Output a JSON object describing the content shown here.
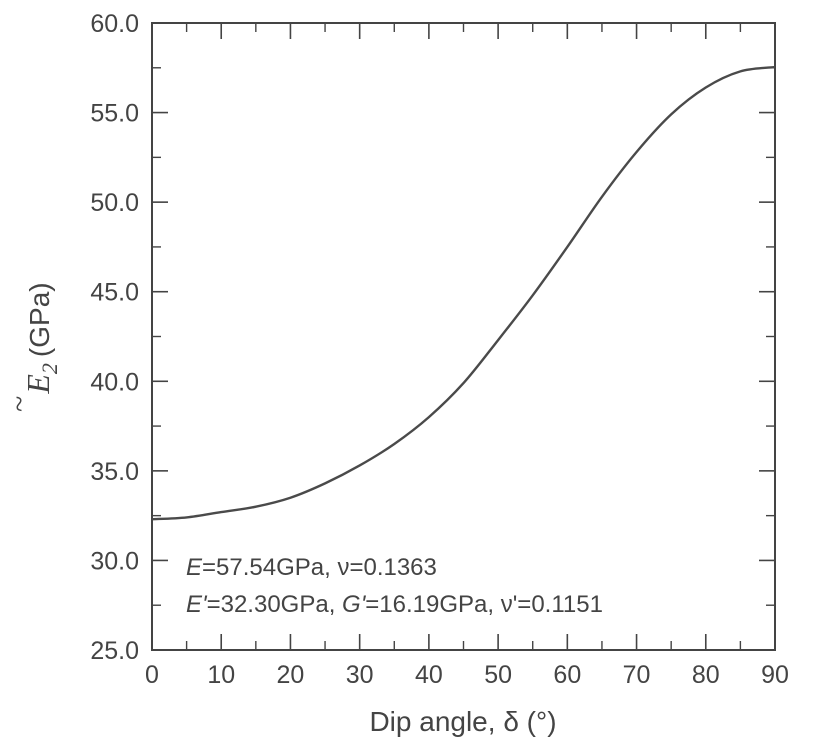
{
  "chart_data": {
    "type": "line",
    "xlabel": "Dip angle, δ (°)",
    "ylabel_symbol": "E",
    "ylabel_subscript": "2",
    "ylabel_tilde": "~",
    "ylabel_unit": "(GPa)",
    "xlim": [
      0,
      90
    ],
    "ylim": [
      25.0,
      60.0
    ],
    "x_ticks": [
      0,
      10,
      20,
      30,
      40,
      50,
      60,
      70,
      80,
      90
    ],
    "x_tick_labels": [
      "0",
      "10",
      "20",
      "30",
      "40",
      "50",
      "60",
      "70",
      "80",
      "90"
    ],
    "y_ticks": [
      25,
      30,
      35,
      40,
      45,
      50,
      55,
      60
    ],
    "y_tick_labels": [
      "25.0",
      "30.0",
      "35.0",
      "40.0",
      "45.0",
      "50.0",
      "55.0",
      "60.0"
    ],
    "grid": false,
    "series": [
      {
        "x": [
          0,
          5,
          10,
          15,
          20,
          25,
          30,
          35,
          40,
          45,
          50,
          55,
          60,
          65,
          70,
          75,
          80,
          85,
          90
        ],
        "y": [
          32.3,
          32.4,
          32.7,
          33.0,
          33.5,
          34.3,
          35.3,
          36.5,
          38.0,
          39.9,
          42.3,
          44.8,
          47.5,
          50.3,
          52.8,
          54.9,
          56.4,
          57.3,
          57.54
        ]
      }
    ],
    "annotations": {
      "line1": [
        {
          "text": "E",
          "italic": true
        },
        {
          "text": "=57.54GPa, ν=0.1363",
          "italic": false
        }
      ],
      "line2": [
        {
          "text": "E'",
          "italic": true
        },
        {
          "text": "=32.30GPa, ",
          "italic": false
        },
        {
          "text": "G'",
          "italic": true
        },
        {
          "text": "=16.19GPa, ν'=0.1151",
          "italic": false
        }
      ]
    },
    "colors": {
      "line": "#4a4a4a",
      "axes": "#444444"
    }
  }
}
